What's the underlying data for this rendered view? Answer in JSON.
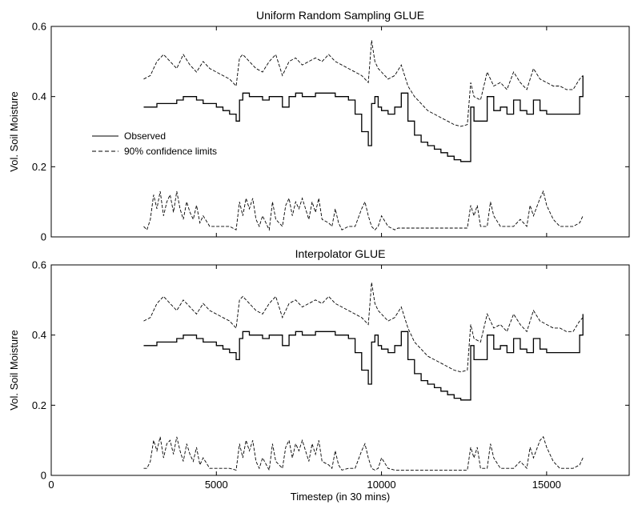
{
  "chart_data": [
    {
      "type": "line",
      "title": "Uniform Random Sampling GLUE",
      "xlabel": "",
      "ylabel": "Vol. Soil Moisture",
      "xlim": [
        0,
        17500
      ],
      "ylim": [
        0,
        0.6
      ],
      "xticks": [],
      "yticks": [
        "0",
        "0.2",
        "0.4",
        "0.6"
      ],
      "grid": false,
      "legend": {
        "position": "left-middle",
        "entries": [
          {
            "label": "Observed",
            "style": "solid"
          },
          {
            "label": "90% confidence limits",
            "style": "dashed"
          }
        ]
      },
      "series": [
        {
          "name": "Observed",
          "style": "solid",
          "x": [
            2800,
            3000,
            3200,
            3400,
            3600,
            3800,
            4000,
            4200,
            4400,
            4600,
            4800,
            5000,
            5200,
            5400,
            5600,
            5700,
            5800,
            6000,
            6200,
            6400,
            6600,
            6800,
            7000,
            7200,
            7400,
            7600,
            7800,
            8000,
            8200,
            8400,
            8600,
            8800,
            9000,
            9200,
            9400,
            9600,
            9700,
            9800,
            9900,
            10000,
            10200,
            10400,
            10600,
            10800,
            11000,
            11200,
            11400,
            11600,
            11800,
            12000,
            12200,
            12400,
            12600,
            12700,
            12800,
            13000,
            13200,
            13400,
            13600,
            13800,
            14000,
            14200,
            14400,
            14600,
            14800,
            15000,
            15200,
            15400,
            15600,
            15800,
            16000,
            16100
          ],
          "y": [
            0.37,
            0.37,
            0.38,
            0.38,
            0.38,
            0.39,
            0.4,
            0.4,
            0.39,
            0.38,
            0.38,
            0.37,
            0.36,
            0.35,
            0.33,
            0.39,
            0.41,
            0.4,
            0.4,
            0.39,
            0.4,
            0.4,
            0.37,
            0.4,
            0.41,
            0.4,
            0.4,
            0.41,
            0.41,
            0.41,
            0.4,
            0.4,
            0.39,
            0.35,
            0.3,
            0.26,
            0.38,
            0.4,
            0.37,
            0.36,
            0.35,
            0.37,
            0.41,
            0.33,
            0.29,
            0.27,
            0.26,
            0.25,
            0.24,
            0.23,
            0.22,
            0.215,
            0.215,
            0.37,
            0.33,
            0.33,
            0.4,
            0.36,
            0.37,
            0.35,
            0.39,
            0.36,
            0.35,
            0.39,
            0.36,
            0.35,
            0.35,
            0.35,
            0.35,
            0.35,
            0.4,
            0.46
          ]
        },
        {
          "name": "90% confidence limits (upper)",
          "style": "dashed",
          "x": [
            2800,
            3000,
            3200,
            3400,
            3600,
            3800,
            4000,
            4200,
            4400,
            4600,
            4800,
            5000,
            5200,
            5400,
            5600,
            5700,
            5800,
            6000,
            6200,
            6400,
            6600,
            6800,
            7000,
            7200,
            7400,
            7600,
            7800,
            8000,
            8200,
            8400,
            8600,
            8800,
            9000,
            9200,
            9400,
            9600,
            9700,
            9800,
            9900,
            10000,
            10200,
            10400,
            10600,
            10800,
            11000,
            11200,
            11400,
            11600,
            11800,
            12000,
            12200,
            12400,
            12600,
            12700,
            12800,
            13000,
            13200,
            13400,
            13600,
            13800,
            14000,
            14200,
            14400,
            14600,
            14800,
            15000,
            15200,
            15400,
            15600,
            15800,
            16000,
            16100
          ],
          "y": [
            0.45,
            0.46,
            0.5,
            0.52,
            0.5,
            0.48,
            0.52,
            0.49,
            0.47,
            0.5,
            0.48,
            0.47,
            0.46,
            0.45,
            0.43,
            0.51,
            0.52,
            0.5,
            0.48,
            0.47,
            0.5,
            0.52,
            0.46,
            0.5,
            0.51,
            0.49,
            0.5,
            0.51,
            0.5,
            0.52,
            0.5,
            0.49,
            0.48,
            0.47,
            0.46,
            0.44,
            0.56,
            0.5,
            0.48,
            0.47,
            0.45,
            0.46,
            0.49,
            0.43,
            0.4,
            0.38,
            0.36,
            0.35,
            0.34,
            0.33,
            0.32,
            0.315,
            0.32,
            0.44,
            0.4,
            0.39,
            0.47,
            0.43,
            0.44,
            0.42,
            0.47,
            0.44,
            0.42,
            0.48,
            0.45,
            0.44,
            0.43,
            0.43,
            0.42,
            0.42,
            0.45,
            0.46
          ]
        },
        {
          "name": "90% confidence limits (lower)",
          "style": "dashed",
          "x": [
            2800,
            2900,
            3000,
            3100,
            3200,
            3300,
            3400,
            3500,
            3600,
            3700,
            3800,
            3900,
            4000,
            4100,
            4200,
            4300,
            4400,
            4500,
            4600,
            4800,
            5000,
            5200,
            5400,
            5600,
            5700,
            5800,
            5900,
            6000,
            6100,
            6200,
            6300,
            6400,
            6600,
            6700,
            6800,
            7000,
            7100,
            7200,
            7300,
            7400,
            7500,
            7600,
            7800,
            7900,
            8000,
            8100,
            8200,
            8400,
            8500,
            8600,
            8700,
            8800,
            9000,
            9200,
            9400,
            9500,
            9600,
            9700,
            9800,
            9900,
            10000,
            10200,
            10400,
            10500,
            10600,
            10800,
            11000,
            11500,
            12000,
            12500,
            12600,
            12700,
            12800,
            12900,
            13000,
            13200,
            13300,
            13400,
            13600,
            13800,
            14000,
            14200,
            14400,
            14500,
            14600,
            14800,
            14900,
            15000,
            15200,
            15400,
            15600,
            15800,
            16000,
            16100
          ],
          "y": [
            0.03,
            0.02,
            0.05,
            0.12,
            0.08,
            0.13,
            0.06,
            0.1,
            0.12,
            0.07,
            0.13,
            0.08,
            0.05,
            0.1,
            0.07,
            0.05,
            0.09,
            0.04,
            0.06,
            0.03,
            0.03,
            0.03,
            0.03,
            0.02,
            0.1,
            0.06,
            0.11,
            0.08,
            0.11,
            0.05,
            0.03,
            0.06,
            0.02,
            0.1,
            0.05,
            0.03,
            0.09,
            0.11,
            0.06,
            0.1,
            0.08,
            0.11,
            0.05,
            0.1,
            0.07,
            0.11,
            0.05,
            0.04,
            0.03,
            0.08,
            0.04,
            0.02,
            0.03,
            0.03,
            0.08,
            0.1,
            0.06,
            0.03,
            0.02,
            0.03,
            0.06,
            0.03,
            0.02,
            0.025,
            0.025,
            0.025,
            0.025,
            0.025,
            0.025,
            0.025,
            0.025,
            0.09,
            0.06,
            0.09,
            0.03,
            0.03,
            0.1,
            0.06,
            0.03,
            0.03,
            0.03,
            0.05,
            0.03,
            0.09,
            0.06,
            0.11,
            0.13,
            0.09,
            0.05,
            0.03,
            0.03,
            0.03,
            0.04,
            0.06
          ]
        }
      ]
    },
    {
      "type": "line",
      "title": "Interpolator GLUE",
      "xlabel": "Timestep (in 30 mins)",
      "ylabel": "Vol. Soil Moisture",
      "xlim": [
        0,
        17500
      ],
      "ylim": [
        0,
        0.6
      ],
      "xticks": [
        "0",
        "5000",
        "10000",
        "15000"
      ],
      "yticks": [
        "0",
        "0.2",
        "0.4",
        "0.6"
      ],
      "grid": false,
      "series": [
        {
          "name": "Observed",
          "style": "solid",
          "x": [
            2800,
            3000,
            3200,
            3400,
            3600,
            3800,
            4000,
            4200,
            4400,
            4600,
            4800,
            5000,
            5200,
            5400,
            5600,
            5700,
            5800,
            6000,
            6200,
            6400,
            6600,
            6800,
            7000,
            7200,
            7400,
            7600,
            7800,
            8000,
            8200,
            8400,
            8600,
            8800,
            9000,
            9200,
            9400,
            9600,
            9700,
            9800,
            9900,
            10000,
            10200,
            10400,
            10600,
            10800,
            11000,
            11200,
            11400,
            11600,
            11800,
            12000,
            12200,
            12400,
            12600,
            12700,
            12800,
            13000,
            13200,
            13400,
            13600,
            13800,
            14000,
            14200,
            14400,
            14600,
            14800,
            15000,
            15200,
            15400,
            15600,
            15800,
            16000,
            16100
          ],
          "y": [
            0.37,
            0.37,
            0.38,
            0.38,
            0.38,
            0.39,
            0.4,
            0.4,
            0.39,
            0.38,
            0.38,
            0.37,
            0.36,
            0.35,
            0.33,
            0.39,
            0.41,
            0.4,
            0.4,
            0.39,
            0.4,
            0.4,
            0.37,
            0.4,
            0.41,
            0.4,
            0.4,
            0.41,
            0.41,
            0.41,
            0.4,
            0.4,
            0.39,
            0.35,
            0.3,
            0.26,
            0.38,
            0.4,
            0.37,
            0.36,
            0.35,
            0.37,
            0.41,
            0.33,
            0.29,
            0.27,
            0.26,
            0.25,
            0.24,
            0.23,
            0.22,
            0.215,
            0.215,
            0.37,
            0.33,
            0.33,
            0.4,
            0.36,
            0.37,
            0.35,
            0.39,
            0.36,
            0.35,
            0.39,
            0.36,
            0.35,
            0.35,
            0.35,
            0.35,
            0.35,
            0.4,
            0.46
          ]
        },
        {
          "name": "90% confidence limits (upper)",
          "style": "dashed",
          "x": [
            2800,
            3000,
            3200,
            3400,
            3600,
            3800,
            4000,
            4200,
            4400,
            4600,
            4800,
            5000,
            5200,
            5400,
            5600,
            5700,
            5800,
            6000,
            6200,
            6400,
            6600,
            6800,
            7000,
            7200,
            7400,
            7600,
            7800,
            8000,
            8200,
            8400,
            8600,
            8800,
            9000,
            9200,
            9400,
            9600,
            9700,
            9800,
            9900,
            10000,
            10200,
            10400,
            10600,
            10800,
            11000,
            11200,
            11400,
            11600,
            11800,
            12000,
            12200,
            12400,
            12600,
            12700,
            12800,
            13000,
            13200,
            13400,
            13600,
            13800,
            14000,
            14200,
            14400,
            14600,
            14800,
            15000,
            15200,
            15400,
            15600,
            15800,
            16000,
            16100
          ],
          "y": [
            0.44,
            0.45,
            0.49,
            0.51,
            0.49,
            0.47,
            0.5,
            0.48,
            0.46,
            0.49,
            0.47,
            0.46,
            0.45,
            0.44,
            0.42,
            0.5,
            0.51,
            0.49,
            0.47,
            0.46,
            0.49,
            0.51,
            0.45,
            0.49,
            0.5,
            0.48,
            0.49,
            0.5,
            0.49,
            0.51,
            0.49,
            0.48,
            0.47,
            0.46,
            0.45,
            0.43,
            0.55,
            0.49,
            0.47,
            0.46,
            0.44,
            0.45,
            0.48,
            0.42,
            0.38,
            0.36,
            0.34,
            0.33,
            0.32,
            0.31,
            0.3,
            0.295,
            0.3,
            0.43,
            0.39,
            0.38,
            0.46,
            0.42,
            0.43,
            0.41,
            0.46,
            0.43,
            0.41,
            0.47,
            0.44,
            0.43,
            0.42,
            0.42,
            0.41,
            0.41,
            0.44,
            0.45
          ]
        },
        {
          "name": "90% confidence limits (lower)",
          "style": "dashed",
          "x": [
            2800,
            2900,
            3000,
            3100,
            3200,
            3300,
            3400,
            3500,
            3600,
            3700,
            3800,
            3900,
            4000,
            4100,
            4200,
            4300,
            4400,
            4500,
            4600,
            4800,
            5000,
            5200,
            5400,
            5600,
            5700,
            5800,
            5900,
            6000,
            6100,
            6200,
            6300,
            6400,
            6600,
            6700,
            6800,
            7000,
            7100,
            7200,
            7300,
            7400,
            7500,
            7600,
            7800,
            7900,
            8000,
            8100,
            8200,
            8400,
            8500,
            8600,
            8700,
            8800,
            9000,
            9200,
            9400,
            9500,
            9600,
            9700,
            9800,
            9900,
            10000,
            10200,
            10400,
            10500,
            10600,
            10800,
            11000,
            11500,
            12000,
            12500,
            12600,
            12700,
            12800,
            12900,
            13000,
            13200,
            13300,
            13400,
            13600,
            13800,
            14000,
            14200,
            14400,
            14500,
            14600,
            14800,
            14900,
            15000,
            15200,
            15400,
            15600,
            15800,
            16000,
            16100
          ],
          "y": [
            0.02,
            0.02,
            0.04,
            0.1,
            0.07,
            0.11,
            0.05,
            0.09,
            0.1,
            0.06,
            0.11,
            0.07,
            0.04,
            0.09,
            0.06,
            0.04,
            0.08,
            0.03,
            0.05,
            0.02,
            0.02,
            0.02,
            0.02,
            0.015,
            0.09,
            0.05,
            0.1,
            0.07,
            0.1,
            0.04,
            0.02,
            0.05,
            0.015,
            0.09,
            0.04,
            0.02,
            0.08,
            0.1,
            0.05,
            0.09,
            0.07,
            0.1,
            0.04,
            0.09,
            0.06,
            0.1,
            0.04,
            0.03,
            0.02,
            0.07,
            0.03,
            0.015,
            0.02,
            0.02,
            0.07,
            0.09,
            0.05,
            0.02,
            0.015,
            0.02,
            0.05,
            0.02,
            0.015,
            0.015,
            0.015,
            0.015,
            0.015,
            0.015,
            0.015,
            0.015,
            0.015,
            0.08,
            0.05,
            0.08,
            0.02,
            0.02,
            0.09,
            0.05,
            0.02,
            0.02,
            0.02,
            0.04,
            0.02,
            0.08,
            0.05,
            0.1,
            0.11,
            0.08,
            0.04,
            0.02,
            0.02,
            0.02,
            0.03,
            0.05
          ]
        }
      ]
    }
  ]
}
